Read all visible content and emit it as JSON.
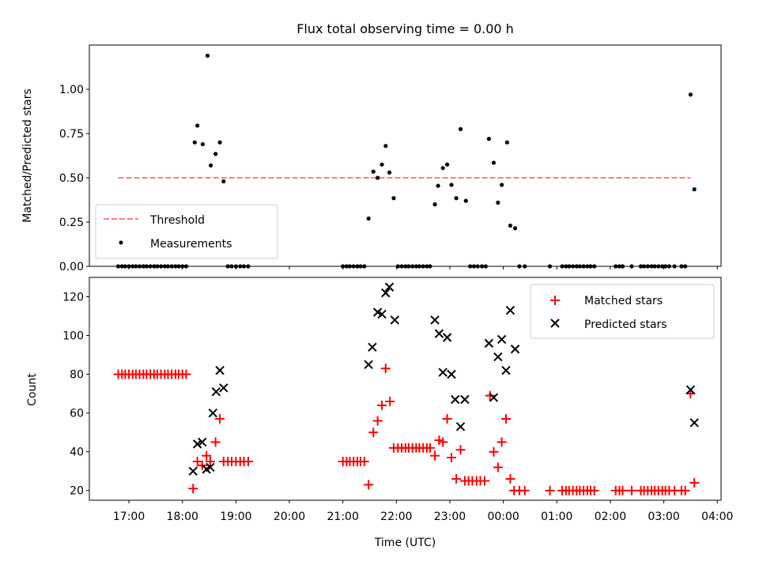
{
  "chart_data": [
    {
      "type": "scatter",
      "title": "Flux total observing time = 0.00 h",
      "xlabel": "",
      "ylabel": "Matched/Predicted stars",
      "xlim_hours": [
        16.26,
        28.07
      ],
      "ylim": [
        0,
        1.25
      ],
      "yticks": [
        0.0,
        0.25,
        0.5,
        0.75,
        1.0
      ],
      "ytick_labels": [
        "0.00",
        "0.25",
        "0.50",
        "0.75",
        "1.00"
      ],
      "xticks_hours": [
        17,
        18,
        19,
        20,
        21,
        22,
        23,
        24,
        25,
        26,
        27,
        28
      ],
      "legend": {
        "placement": "lower-left",
        "entries": [
          "Threshold",
          "Measurements"
        ]
      },
      "series": [
        {
          "name": "Threshold",
          "style": "dashed-line",
          "color": "#ff7f7f",
          "points": [
            [
              16.8,
              0.5
            ],
            [
              27.5,
              0.5
            ]
          ]
        },
        {
          "name": "Measurements",
          "style": "dot",
          "color": "#000000",
          "points": [
            [
              16.8,
              0
            ],
            [
              16.87,
              0
            ],
            [
              16.93,
              0
            ],
            [
              17.0,
              0
            ],
            [
              17.07,
              0
            ],
            [
              17.13,
              0
            ],
            [
              17.2,
              0
            ],
            [
              17.27,
              0
            ],
            [
              17.33,
              0
            ],
            [
              17.4,
              0
            ],
            [
              17.47,
              0
            ],
            [
              17.53,
              0
            ],
            [
              17.6,
              0
            ],
            [
              17.67,
              0
            ],
            [
              17.73,
              0
            ],
            [
              17.8,
              0
            ],
            [
              17.87,
              0
            ],
            [
              17.93,
              0
            ],
            [
              18.0,
              0
            ],
            [
              18.07,
              0
            ],
            [
              18.23,
              0.7
            ],
            [
              18.28,
              0.795
            ],
            [
              18.38,
              0.69
            ],
            [
              18.47,
              1.19
            ],
            [
              18.53,
              0.57
            ],
            [
              18.62,
              0.635
            ],
            [
              18.7,
              0.7
            ],
            [
              18.77,
              0.48
            ],
            [
              18.85,
              0
            ],
            [
              18.92,
              0
            ],
            [
              19.0,
              0
            ],
            [
              19.08,
              0
            ],
            [
              19.15,
              0
            ],
            [
              19.23,
              0
            ],
            [
              21.0,
              0
            ],
            [
              21.07,
              0
            ],
            [
              21.13,
              0
            ],
            [
              21.2,
              0
            ],
            [
              21.27,
              0
            ],
            [
              21.33,
              0
            ],
            [
              21.4,
              0
            ],
            [
              21.48,
              0.27
            ],
            [
              21.57,
              0.535
            ],
            [
              21.65,
              0.5
            ],
            [
              21.73,
              0.575
            ],
            [
              21.8,
              0.68
            ],
            [
              21.87,
              0.53
            ],
            [
              21.95,
              0.385
            ],
            [
              22.03,
              0
            ],
            [
              22.1,
              0
            ],
            [
              22.17,
              0
            ],
            [
              22.23,
              0
            ],
            [
              22.3,
              0
            ],
            [
              22.37,
              0
            ],
            [
              22.43,
              0
            ],
            [
              22.5,
              0
            ],
            [
              22.57,
              0
            ],
            [
              22.63,
              0
            ],
            [
              22.72,
              0.35
            ],
            [
              22.78,
              0.455
            ],
            [
              22.87,
              0.555
            ],
            [
              22.95,
              0.575
            ],
            [
              23.03,
              0.46
            ],
            [
              23.12,
              0.385
            ],
            [
              23.2,
              0.775
            ],
            [
              23.3,
              0.37
            ],
            [
              23.38,
              0
            ],
            [
              23.45,
              0
            ],
            [
              23.52,
              0
            ],
            [
              23.6,
              0
            ],
            [
              23.67,
              0
            ],
            [
              23.73,
              0.72
            ],
            [
              23.82,
              0.585
            ],
            [
              23.9,
              0.36
            ],
            [
              23.97,
              0.46
            ],
            [
              24.07,
              0.7
            ],
            [
              24.13,
              0.23
            ],
            [
              24.22,
              0.215
            ],
            [
              24.3,
              0
            ],
            [
              24.4,
              0
            ],
            [
              24.87,
              0
            ],
            [
              25.1,
              0
            ],
            [
              25.17,
              0
            ],
            [
              25.23,
              0
            ],
            [
              25.3,
              0
            ],
            [
              25.37,
              0
            ],
            [
              25.43,
              0
            ],
            [
              25.5,
              0
            ],
            [
              25.57,
              0
            ],
            [
              25.63,
              0
            ],
            [
              25.7,
              0
            ],
            [
              26.1,
              0
            ],
            [
              26.17,
              0
            ],
            [
              26.23,
              0
            ],
            [
              26.4,
              0
            ],
            [
              26.57,
              0
            ],
            [
              26.63,
              0
            ],
            [
              26.7,
              0
            ],
            [
              26.77,
              0
            ],
            [
              26.83,
              0
            ],
            [
              26.9,
              0
            ],
            [
              26.97,
              0
            ],
            [
              27.03,
              0
            ],
            [
              27.1,
              0
            ],
            [
              27.2,
              0
            ],
            [
              27.33,
              0
            ],
            [
              27.4,
              0
            ],
            [
              27.5,
              0.97
            ],
            [
              27.57,
              0.435
            ]
          ]
        }
      ]
    },
    {
      "type": "scatter",
      "title": "",
      "xlabel": "Time (UTC)",
      "ylabel": "Count",
      "xlim_hours": [
        16.26,
        28.07
      ],
      "ylim": [
        15,
        130
      ],
      "yticks": [
        20,
        40,
        60,
        80,
        100,
        120
      ],
      "ytick_labels": [
        "20",
        "40",
        "60",
        "80",
        "100",
        "120"
      ],
      "xticks_hours": [
        17,
        18,
        19,
        20,
        21,
        22,
        23,
        24,
        25,
        26,
        27,
        28
      ],
      "xtick_labels": [
        "17:00",
        "18:00",
        "19:00",
        "20:00",
        "21:00",
        "22:00",
        "23:00",
        "00:00",
        "01:00",
        "02:00",
        "03:00",
        "04:00"
      ],
      "legend": {
        "placement": "top-right",
        "entries": [
          "Matched stars",
          "Predicted stars"
        ]
      },
      "series": [
        {
          "name": "Matched stars",
          "style": "plus",
          "color": "#ff0000",
          "points": [
            [
              16.8,
              80
            ],
            [
              16.87,
              80
            ],
            [
              16.93,
              80
            ],
            [
              17.0,
              80
            ],
            [
              17.07,
              80
            ],
            [
              17.13,
              80
            ],
            [
              17.2,
              80
            ],
            [
              17.27,
              80
            ],
            [
              17.33,
              80
            ],
            [
              17.4,
              80
            ],
            [
              17.47,
              80
            ],
            [
              17.53,
              80
            ],
            [
              17.6,
              80
            ],
            [
              17.67,
              80
            ],
            [
              17.73,
              80
            ],
            [
              17.8,
              80
            ],
            [
              17.87,
              80
            ],
            [
              17.93,
              80
            ],
            [
              18.0,
              80
            ],
            [
              18.07,
              80
            ],
            [
              18.2,
              21
            ],
            [
              18.28,
              35
            ],
            [
              18.37,
              33
            ],
            [
              18.45,
              38
            ],
            [
              18.52,
              35
            ],
            [
              18.62,
              45
            ],
            [
              18.7,
              57
            ],
            [
              18.77,
              35
            ],
            [
              18.85,
              35
            ],
            [
              18.92,
              35
            ],
            [
              19.0,
              35
            ],
            [
              19.08,
              35
            ],
            [
              19.15,
              35
            ],
            [
              19.23,
              35
            ],
            [
              21.0,
              35
            ],
            [
              21.07,
              35
            ],
            [
              21.13,
              35
            ],
            [
              21.2,
              35
            ],
            [
              21.27,
              35
            ],
            [
              21.33,
              35
            ],
            [
              21.4,
              35
            ],
            [
              21.48,
              23
            ],
            [
              21.57,
              50
            ],
            [
              21.65,
              56
            ],
            [
              21.73,
              64
            ],
            [
              21.8,
              83
            ],
            [
              21.88,
              66
            ],
            [
              21.95,
              42
            ],
            [
              22.03,
              42
            ],
            [
              22.1,
              42
            ],
            [
              22.17,
              42
            ],
            [
              22.23,
              42
            ],
            [
              22.3,
              42
            ],
            [
              22.37,
              42
            ],
            [
              22.43,
              42
            ],
            [
              22.5,
              42
            ],
            [
              22.57,
              42
            ],
            [
              22.63,
              42
            ],
            [
              22.72,
              38
            ],
            [
              22.8,
              46
            ],
            [
              22.87,
              45
            ],
            [
              22.95,
              57
            ],
            [
              23.03,
              37
            ],
            [
              23.12,
              26
            ],
            [
              23.2,
              41
            ],
            [
              23.28,
              25
            ],
            [
              23.35,
              25
            ],
            [
              23.42,
              25
            ],
            [
              23.5,
              25
            ],
            [
              23.57,
              25
            ],
            [
              23.65,
              25
            ],
            [
              23.75,
              69
            ],
            [
              23.82,
              40
            ],
            [
              23.9,
              32
            ],
            [
              23.97,
              45
            ],
            [
              24.05,
              57
            ],
            [
              24.13,
              26
            ],
            [
              24.2,
              20
            ],
            [
              24.3,
              20
            ],
            [
              24.4,
              20
            ],
            [
              24.87,
              20
            ],
            [
              25.1,
              20
            ],
            [
              25.17,
              20
            ],
            [
              25.23,
              20
            ],
            [
              25.3,
              20
            ],
            [
              25.37,
              20
            ],
            [
              25.43,
              20
            ],
            [
              25.5,
              20
            ],
            [
              25.57,
              20
            ],
            [
              25.63,
              20
            ],
            [
              25.7,
              20
            ],
            [
              26.1,
              20
            ],
            [
              26.17,
              20
            ],
            [
              26.23,
              20
            ],
            [
              26.4,
              20
            ],
            [
              26.57,
              20
            ],
            [
              26.63,
              20
            ],
            [
              26.7,
              20
            ],
            [
              26.77,
              20
            ],
            [
              26.83,
              20
            ],
            [
              26.9,
              20
            ],
            [
              26.97,
              20
            ],
            [
              27.03,
              20
            ],
            [
              27.1,
              20
            ],
            [
              27.2,
              20
            ],
            [
              27.33,
              20
            ],
            [
              27.4,
              20
            ],
            [
              27.5,
              70
            ],
            [
              27.57,
              24
            ]
          ]
        },
        {
          "name": "Predicted stars",
          "style": "x",
          "color": "#000000",
          "points": [
            [
              18.2,
              30
            ],
            [
              18.28,
              44
            ],
            [
              18.37,
              45
            ],
            [
              18.45,
              31
            ],
            [
              18.52,
              32
            ],
            [
              18.57,
              60
            ],
            [
              18.63,
              71
            ],
            [
              18.7,
              82
            ],
            [
              18.77,
              73
            ],
            [
              21.48,
              85
            ],
            [
              21.55,
              94
            ],
            [
              21.65,
              112
            ],
            [
              21.73,
              111
            ],
            [
              21.8,
              122
            ],
            [
              21.87,
              125
            ],
            [
              21.97,
              108
            ],
            [
              22.72,
              108
            ],
            [
              22.8,
              101
            ],
            [
              22.87,
              81
            ],
            [
              22.95,
              99
            ],
            [
              23.03,
              80
            ],
            [
              23.1,
              67
            ],
            [
              23.2,
              53
            ],
            [
              23.28,
              67
            ],
            [
              23.73,
              96
            ],
            [
              23.82,
              68
            ],
            [
              23.9,
              89
            ],
            [
              23.97,
              98
            ],
            [
              24.05,
              82
            ],
            [
              24.13,
              113
            ],
            [
              24.22,
              93
            ],
            [
              27.5,
              72
            ],
            [
              27.57,
              55
            ]
          ]
        }
      ]
    }
  ]
}
